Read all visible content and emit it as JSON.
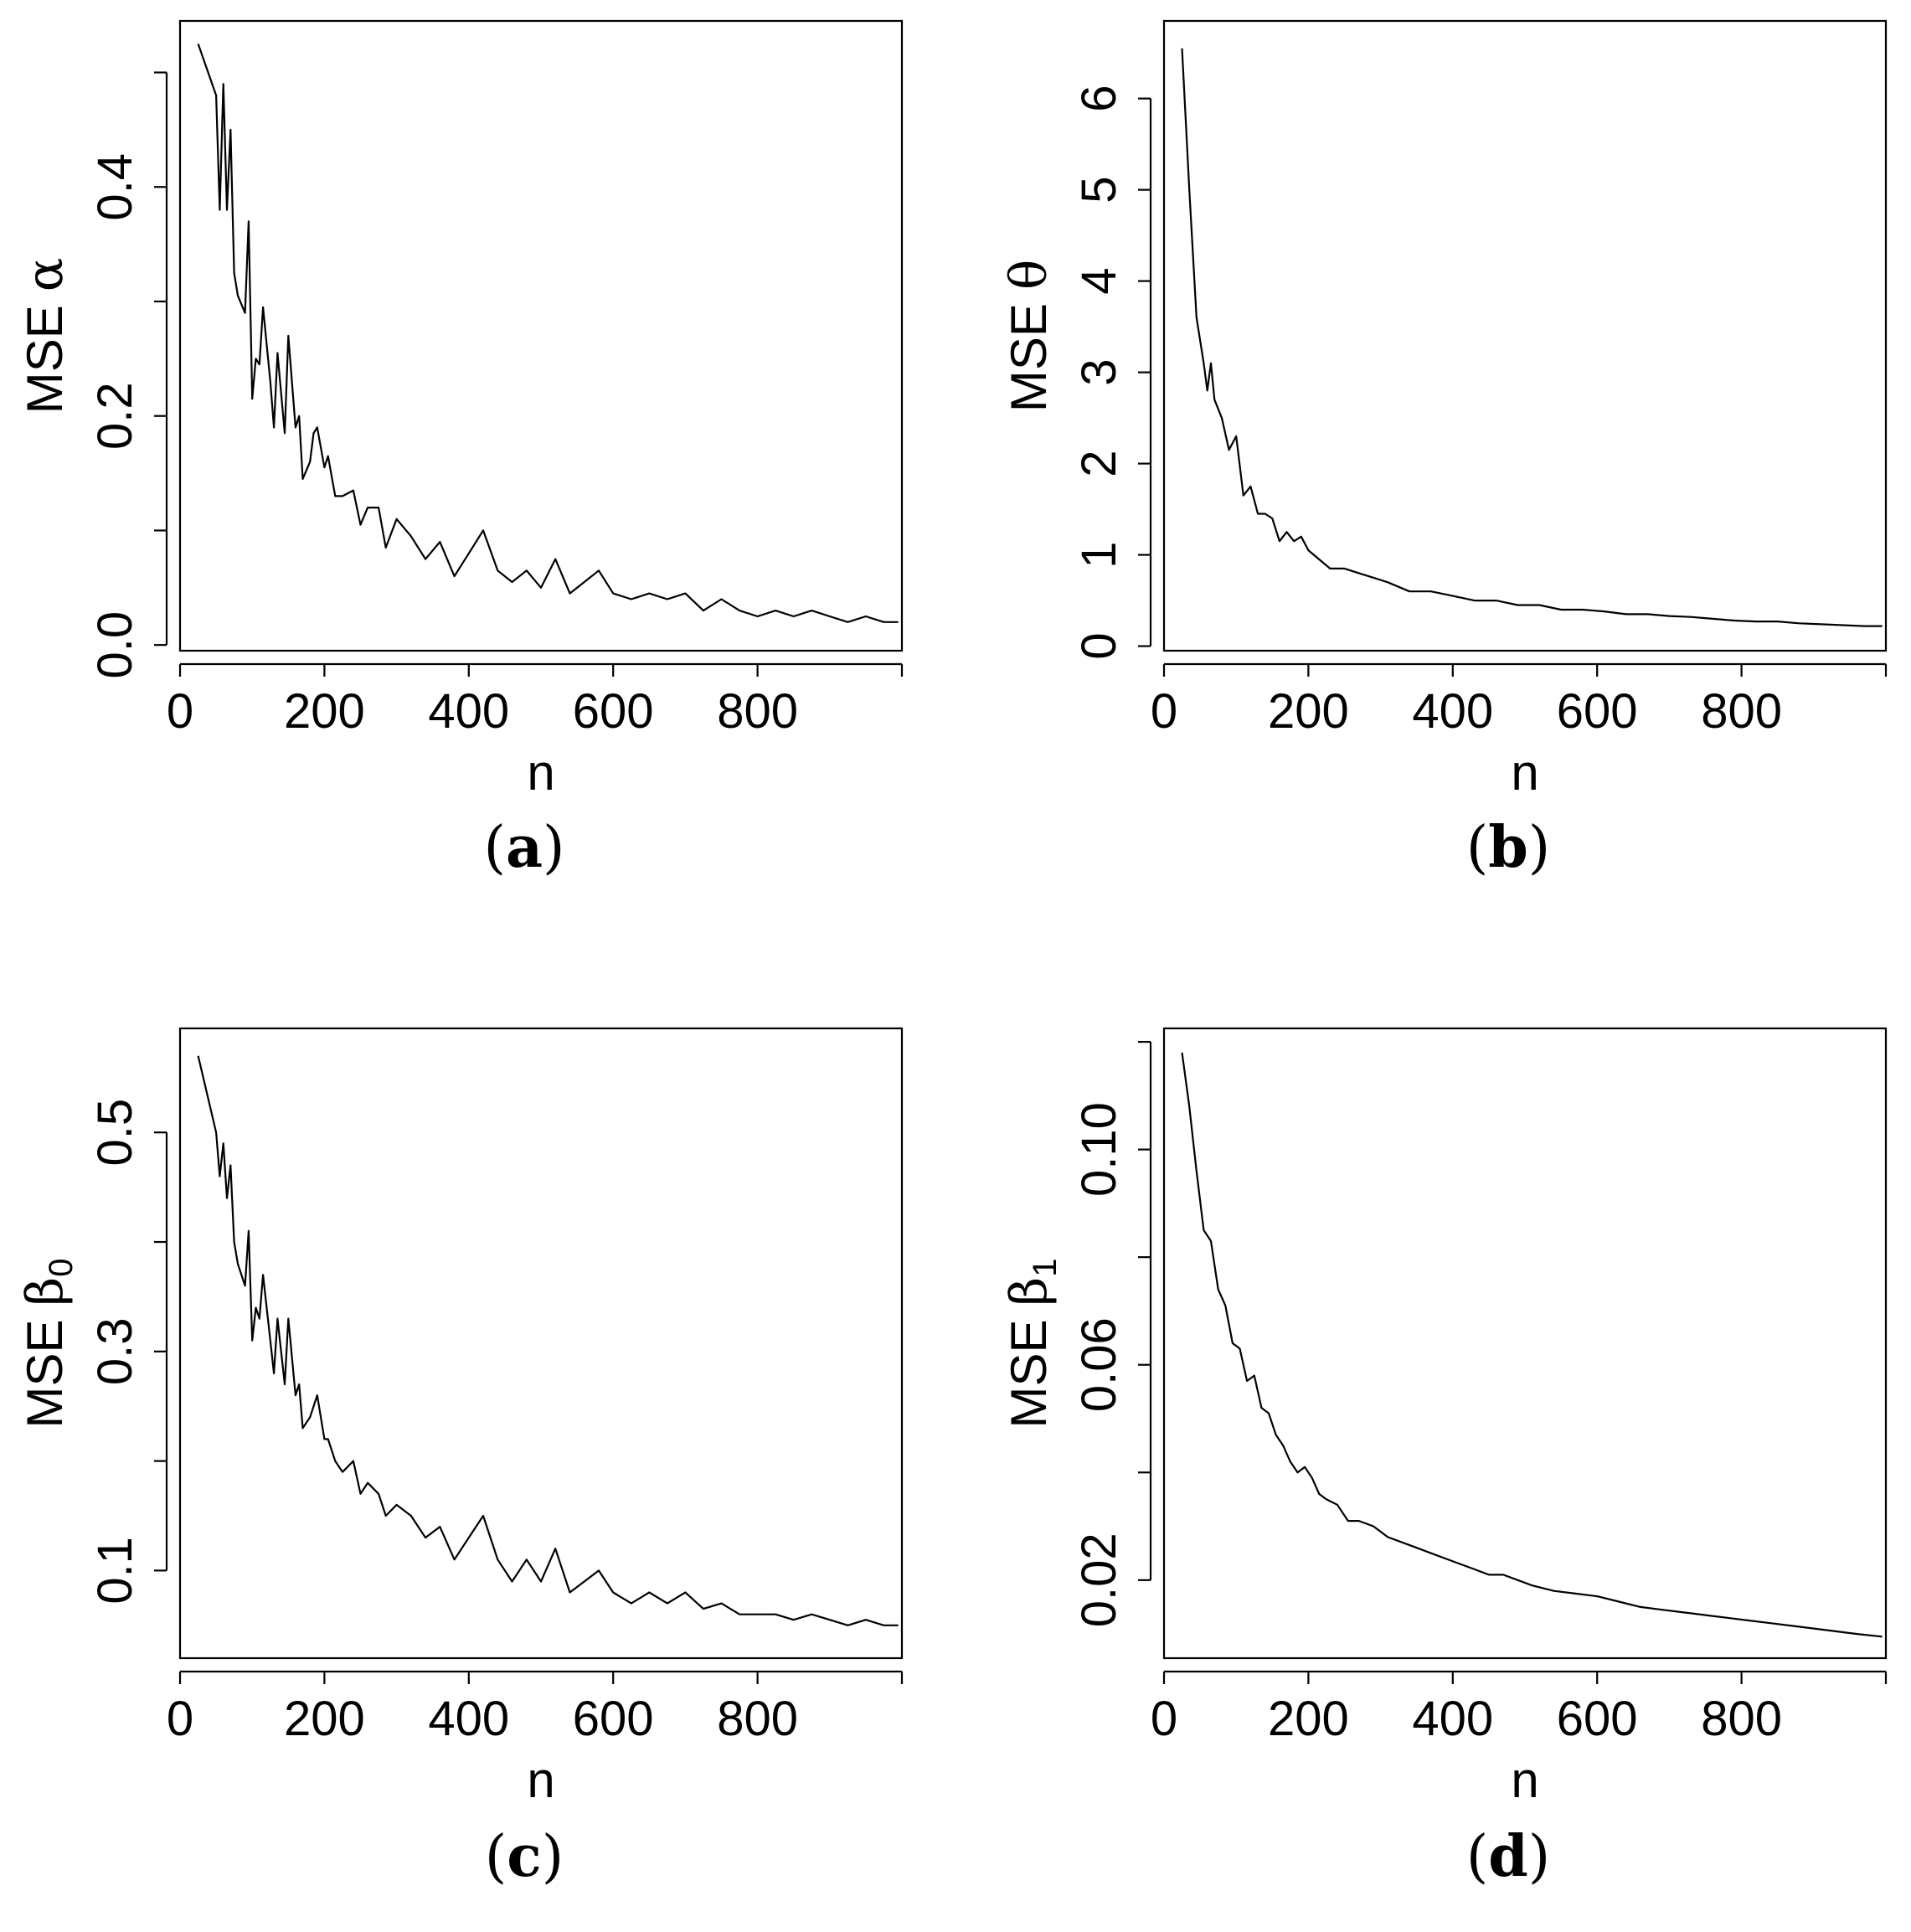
{
  "chart_data": [
    {
      "type": "line",
      "panel": "a",
      "caption": "(a)",
      "caption_letter": "a",
      "xlabel": "n",
      "ylabel_prefix": "MSE",
      "ylabel_symbol": "α",
      "ylabel_subscript": "",
      "xlim": [
        0,
        1000
      ],
      "ylim": [
        -0.005,
        0.545
      ],
      "xticks": [
        0,
        200,
        400,
        600,
        800,
        1000
      ],
      "xtick_labels": [
        "0",
        "200",
        "400",
        "600",
        "800",
        ""
      ],
      "yticks": [
        0.0,
        0.1,
        0.2,
        0.3,
        0.4,
        0.5
      ],
      "ytick_labels": [
        "0.0",
        "",
        "0.2",
        "",
        "0.4",
        ""
      ],
      "grid": false,
      "x": [
        25,
        50,
        55,
        60,
        65,
        70,
        75,
        80,
        90,
        95,
        100,
        105,
        110,
        115,
        125,
        130,
        135,
        145,
        150,
        160,
        165,
        170,
        180,
        185,
        190,
        200,
        205,
        215,
        225,
        240,
        250,
        260,
        275,
        285,
        300,
        320,
        340,
        360,
        380,
        400,
        420,
        440,
        460,
        480,
        500,
        520,
        540,
        560,
        580,
        600,
        625,
        650,
        675,
        700,
        725,
        750,
        775,
        800,
        825,
        850,
        875,
        900,
        925,
        950,
        975,
        995
      ],
      "y": [
        0.525,
        0.48,
        0.38,
        0.49,
        0.38,
        0.45,
        0.325,
        0.305,
        0.29,
        0.37,
        0.215,
        0.25,
        0.245,
        0.295,
        0.23,
        0.19,
        0.255,
        0.185,
        0.27,
        0.19,
        0.2,
        0.145,
        0.16,
        0.185,
        0.19,
        0.155,
        0.165,
        0.13,
        0.13,
        0.135,
        0.105,
        0.12,
        0.12,
        0.085,
        0.11,
        0.095,
        0.075,
        0.09,
        0.06,
        0.08,
        0.1,
        0.065,
        0.055,
        0.065,
        0.05,
        0.075,
        0.045,
        0.055,
        0.065,
        0.045,
        0.04,
        0.045,
        0.04,
        0.045,
        0.03,
        0.04,
        0.03,
        0.025,
        0.03,
        0.025,
        0.03,
        0.025,
        0.02,
        0.025,
        0.02,
        0.02
      ]
    },
    {
      "type": "line",
      "panel": "b",
      "caption": "(b)",
      "caption_letter": "b",
      "xlabel": "n",
      "ylabel_prefix": "MSE",
      "ylabel_symbol": "θ",
      "ylabel_subscript": "",
      "xlim": [
        0,
        1000
      ],
      "ylim": [
        -0.05,
        6.85
      ],
      "xticks": [
        0,
        200,
        400,
        600,
        800,
        1000
      ],
      "xtick_labels": [
        "0",
        "200",
        "400",
        "600",
        "800",
        ""
      ],
      "yticks": [
        0,
        1,
        2,
        3,
        4,
        5,
        6
      ],
      "ytick_labels": [
        "0",
        "1",
        "2",
        "3",
        "4",
        "5",
        "6"
      ],
      "grid": false,
      "x": [
        25,
        35,
        45,
        55,
        60,
        65,
        70,
        80,
        90,
        100,
        110,
        120,
        130,
        140,
        150,
        160,
        170,
        180,
        190,
        200,
        215,
        230,
        250,
        270,
        290,
        310,
        340,
        370,
        400,
        430,
        460,
        490,
        520,
        550,
        580,
        610,
        640,
        670,
        700,
        730,
        760,
        790,
        820,
        850,
        880,
        910,
        940,
        970,
        995
      ],
      "y": [
        6.55,
        5.0,
        3.6,
        3.1,
        2.8,
        3.1,
        2.7,
        2.5,
        2.15,
        2.3,
        1.65,
        1.75,
        1.45,
        1.45,
        1.4,
        1.15,
        1.25,
        1.15,
        1.2,
        1.05,
        0.95,
        0.85,
        0.85,
        0.8,
        0.75,
        0.7,
        0.6,
        0.6,
        0.55,
        0.5,
        0.5,
        0.45,
        0.45,
        0.4,
        0.4,
        0.38,
        0.35,
        0.35,
        0.33,
        0.32,
        0.3,
        0.28,
        0.27,
        0.27,
        0.25,
        0.24,
        0.23,
        0.22,
        0.22
      ]
    },
    {
      "type": "line",
      "panel": "c",
      "caption": "(c)",
      "caption_letter": "c",
      "xlabel": "n",
      "ylabel_prefix": "MSE",
      "ylabel_symbol": "β",
      "ylabel_subscript": "0",
      "xlim": [
        0,
        1000
      ],
      "ylim": [
        0.02,
        0.595
      ],
      "xticks": [
        0,
        200,
        400,
        600,
        800,
        1000
      ],
      "xtick_labels": [
        "0",
        "200",
        "400",
        "600",
        "800",
        ""
      ],
      "yticks": [
        0.1,
        0.2,
        0.3,
        0.4,
        0.5
      ],
      "ytick_labels": [
        "0.1",
        "",
        "0.3",
        "",
        "0.5"
      ],
      "grid": false,
      "x": [
        25,
        50,
        55,
        60,
        65,
        70,
        75,
        80,
        90,
        95,
        100,
        105,
        110,
        115,
        125,
        130,
        135,
        145,
        150,
        160,
        165,
        170,
        180,
        185,
        190,
        200,
        205,
        215,
        225,
        240,
        250,
        260,
        275,
        285,
        300,
        320,
        340,
        360,
        380,
        400,
        420,
        440,
        460,
        480,
        500,
        520,
        540,
        560,
        580,
        600,
        625,
        650,
        675,
        700,
        725,
        750,
        775,
        800,
        825,
        850,
        875,
        900,
        925,
        950,
        975,
        995
      ],
      "y": [
        0.57,
        0.5,
        0.46,
        0.49,
        0.44,
        0.47,
        0.4,
        0.38,
        0.36,
        0.41,
        0.31,
        0.34,
        0.33,
        0.37,
        0.31,
        0.28,
        0.33,
        0.27,
        0.33,
        0.26,
        0.27,
        0.23,
        0.24,
        0.25,
        0.26,
        0.22,
        0.22,
        0.2,
        0.19,
        0.2,
        0.17,
        0.18,
        0.17,
        0.15,
        0.16,
        0.15,
        0.13,
        0.14,
        0.11,
        0.13,
        0.15,
        0.11,
        0.09,
        0.11,
        0.09,
        0.12,
        0.08,
        0.09,
        0.1,
        0.08,
        0.07,
        0.08,
        0.07,
        0.08,
        0.065,
        0.07,
        0.06,
        0.06,
        0.06,
        0.055,
        0.06,
        0.055,
        0.05,
        0.055,
        0.05,
        0.05
      ]
    },
    {
      "type": "line",
      "panel": "d",
      "caption": "(d)",
      "caption_letter": "d",
      "xlabel": "n",
      "ylabel_prefix": "MSE",
      "ylabel_symbol": "β",
      "ylabel_subscript": "1",
      "xlim": [
        0,
        1000
      ],
      "ylim": [
        0.0055,
        0.1225
      ],
      "xticks": [
        0,
        200,
        400,
        600,
        800,
        1000
      ],
      "xtick_labels": [
        "0",
        "200",
        "400",
        "600",
        "800",
        ""
      ],
      "yticks": [
        0.02,
        0.04,
        0.06,
        0.08,
        0.1,
        0.12
      ],
      "ytick_labels": [
        "0.02",
        "",
        "0.06",
        "",
        "0.10",
        ""
      ],
      "grid": false,
      "x": [
        25,
        35,
        45,
        55,
        65,
        75,
        85,
        95,
        105,
        115,
        125,
        135,
        145,
        155,
        165,
        175,
        185,
        195,
        205,
        215,
        225,
        240,
        255,
        270,
        290,
        310,
        330,
        350,
        370,
        390,
        410,
        430,
        450,
        470,
        490,
        510,
        540,
        570,
        600,
        630,
        660,
        690,
        720,
        750,
        780,
        810,
        840,
        870,
        900,
        930,
        960,
        995
      ],
      "y": [
        0.118,
        0.108,
        0.096,
        0.085,
        0.083,
        0.074,
        0.071,
        0.064,
        0.063,
        0.057,
        0.058,
        0.052,
        0.051,
        0.047,
        0.045,
        0.042,
        0.04,
        0.041,
        0.039,
        0.036,
        0.035,
        0.034,
        0.031,
        0.031,
        0.03,
        0.028,
        0.027,
        0.026,
        0.025,
        0.024,
        0.023,
        0.022,
        0.021,
        0.021,
        0.02,
        0.019,
        0.018,
        0.0175,
        0.017,
        0.016,
        0.015,
        0.0145,
        0.014,
        0.0135,
        0.013,
        0.0125,
        0.012,
        0.0115,
        0.011,
        0.0105,
        0.01,
        0.0095
      ]
    }
  ]
}
